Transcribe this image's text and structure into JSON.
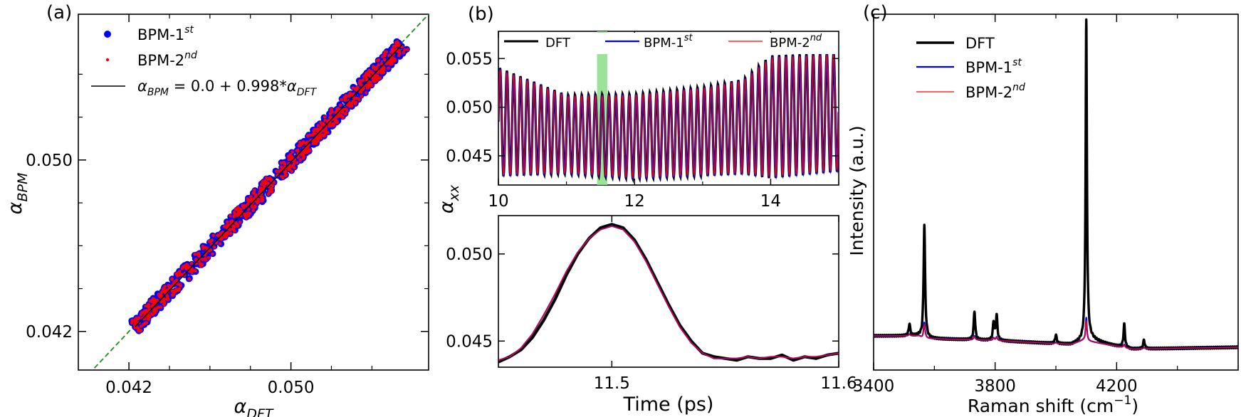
{
  "chart_data": [
    {
      "panel": "(a)",
      "type": "scatter",
      "xlabel": "α_DFT",
      "xlabel_base": "α",
      "xlabel_sub": "DFT",
      "ylabel": "α_BPM",
      "ylabel_base": "α",
      "ylabel_sub": "BPM",
      "xlim": [
        0.0395,
        0.0568
      ],
      "ylim": [
        0.0402,
        0.0568
      ],
      "xticks": [
        "0.042",
        "0.050"
      ],
      "xtick_values": [
        0.042,
        0.05
      ],
      "yticks": [
        "0.042",
        "0.050"
      ],
      "ytick_values": [
        0.042,
        0.05
      ],
      "x_minor_ticks": [
        0.044,
        0.046,
        0.048,
        0.052,
        0.054
      ],
      "y_minor_ticks": [
        0.044,
        0.046,
        0.048,
        0.052,
        0.054
      ],
      "data_range": [
        0.0423,
        0.0555
      ],
      "fit": {
        "intercept": 0.0,
        "slope": 0.998
      },
      "series": [
        {
          "name": "BPM-1st",
          "label_base": "BPM-1",
          "label_sup": "st",
          "color": "#0000ff",
          "marker": "dot"
        },
        {
          "name": "BPM-2nd",
          "label_base": "BPM-2",
          "label_sup": "nd",
          "color": "#ff0000",
          "marker": "small-dot"
        },
        {
          "name": "α_BPM = 0.0 + 0.998*α_DFT",
          "color": "#000000",
          "marker": "line"
        }
      ],
      "fit_label": {
        "a": "α",
        "bpm": "BPM",
        "eq": " = 0.0 + 0.998*",
        "dft": "DFT"
      },
      "diagonal": {
        "color": "#228b22",
        "style": "dashed"
      },
      "legend_position": "top-left"
    },
    {
      "panel": "(b)",
      "type": "line",
      "subplot": "top",
      "ylabel": "α_xx",
      "ylabel_base": "α",
      "ylabel_sub": "xx",
      "xlim": [
        10,
        15
      ],
      "ylim": [
        0.042,
        0.0578
      ],
      "xticks": [
        "10",
        "12",
        "14"
      ],
      "xtick_values": [
        10,
        12,
        14
      ],
      "yticks": [
        "0.045",
        "0.050",
        "0.055"
      ],
      "ytick_values": [
        0.045,
        0.05,
        0.055
      ],
      "oscillation_period_ps": 0.1,
      "mean_and_amplitude": [
        {
          "t": 10.0,
          "mean": 0.0485,
          "amp": 0.0055
        },
        {
          "t": 11.0,
          "mean": 0.0472,
          "amp": 0.004
        },
        {
          "t": 12.0,
          "mean": 0.047,
          "amp": 0.0043
        },
        {
          "t": 13.0,
          "mean": 0.0475,
          "amp": 0.0045
        },
        {
          "t": 13.6,
          "mean": 0.048,
          "amp": 0.0048
        },
        {
          "t": 14.0,
          "mean": 0.049,
          "amp": 0.0062
        },
        {
          "t": 15.0,
          "mean": 0.0495,
          "amp": 0.006
        }
      ],
      "highlight_band": {
        "from": 11.45,
        "to": 11.6,
        "color": "#90e090"
      },
      "series": [
        {
          "name": "DFT",
          "color": "#000000"
        },
        {
          "name": "BPM-1st",
          "label_base": "BPM-1",
          "label_sup": "st",
          "color": "#0000ff"
        },
        {
          "name": "BPM-2nd",
          "label_base": "BPM-2",
          "label_sup": "nd",
          "color": "#ff0000"
        }
      ],
      "legend_position": "top"
    },
    {
      "panel": "(b)",
      "type": "line",
      "subplot": "bottom",
      "xlabel": "Time (ps)",
      "xlim": [
        11.45,
        11.6
      ],
      "ylim": [
        0.0435,
        0.0522
      ],
      "xticks": [
        "11.5",
        "11.6"
      ],
      "xtick_values": [
        11.5,
        11.6
      ],
      "yticks": [
        "0.050",
        "0.045"
      ],
      "ytick_values": [
        0.05,
        0.045
      ],
      "x": [
        11.45,
        11.455,
        11.46,
        11.465,
        11.47,
        11.475,
        11.48,
        11.485,
        11.49,
        11.495,
        11.5,
        11.505,
        11.51,
        11.515,
        11.52,
        11.525,
        11.53,
        11.535,
        11.54,
        11.545,
        11.55,
        11.555,
        11.56,
        11.565,
        11.57,
        11.575,
        11.58,
        11.585,
        11.59,
        11.595,
        11.6
      ],
      "series": [
        {
          "name": "DFT",
          "color": "#000000",
          "values": [
            0.0438,
            0.0441,
            0.0445,
            0.0452,
            0.0462,
            0.0474,
            0.0488,
            0.05,
            0.0509,
            0.0515,
            0.0517,
            0.0515,
            0.0508,
            0.0497,
            0.0484,
            0.0471,
            0.0459,
            0.045,
            0.0443,
            0.0441,
            0.044,
            0.0439,
            0.0441,
            0.044,
            0.044,
            0.0442,
            0.0439,
            0.0441,
            0.044,
            0.0442,
            0.0443
          ]
        },
        {
          "name": "BPM-1st",
          "color": "#0000ff",
          "values": [
            0.0439,
            0.0441,
            0.0446,
            0.0454,
            0.0465,
            0.0477,
            0.049,
            0.0501,
            0.0509,
            0.0514,
            0.0516,
            0.0514,
            0.0507,
            0.0496,
            0.0483,
            0.047,
            0.0458,
            0.0449,
            0.0443,
            0.044,
            0.044,
            0.044,
            0.0441,
            0.044,
            0.0441,
            0.0441,
            0.044,
            0.0441,
            0.0441,
            0.0442,
            0.0443
          ]
        },
        {
          "name": "BPM-2nd",
          "color": "#ff0000",
          "values": [
            0.0439,
            0.0441,
            0.0446,
            0.0454,
            0.0465,
            0.0477,
            0.049,
            0.0501,
            0.0509,
            0.0514,
            0.0516,
            0.0514,
            0.0507,
            0.0496,
            0.0483,
            0.047,
            0.0458,
            0.0449,
            0.0443,
            0.044,
            0.044,
            0.044,
            0.0441,
            0.044,
            0.0441,
            0.0441,
            0.044,
            0.0441,
            0.0441,
            0.0442,
            0.0443
          ]
        }
      ]
    },
    {
      "panel": "(c)",
      "type": "line",
      "xlabel": "Raman shift (cm⁻¹)",
      "xlabel_text": "Raman shift (cm",
      "xlabel_sup": "−1",
      "xlabel_close": ")",
      "ylabel": "Intensity (a.u.)",
      "xlim": [
        3400,
        4600
      ],
      "ylim": [
        0,
        100
      ],
      "xticks": [
        "3400",
        "3800",
        "4200"
      ],
      "xtick_values": [
        3400,
        3800,
        4200
      ],
      "x_minor_ticks": [
        3600,
        4000,
        4400
      ],
      "baseline": [
        {
          "x": 3400,
          "y": 9.6
        },
        {
          "x": 3550,
          "y": 9.6
        },
        {
          "x": 3560,
          "y": 8.9
        },
        {
          "x": 3800,
          "y": 8.3
        },
        {
          "x": 4050,
          "y": 7.2
        },
        {
          "x": 4090,
          "y": 8.4
        },
        {
          "x": 4250,
          "y": 5.9
        },
        {
          "x": 4600,
          "y": 6.4
        }
      ],
      "peaks": [
        {
          "pos": 3518,
          "height": 3.4,
          "width": 3
        },
        {
          "pos": 3567,
          "height": 32,
          "width": 3
        },
        {
          "pos": 3732,
          "height": 8,
          "width": 3
        },
        {
          "pos": 3795,
          "height": 5,
          "width": 3
        },
        {
          "pos": 3805,
          "height": 7,
          "width": 3
        },
        {
          "pos": 4000,
          "height": 2.5,
          "width": 3
        },
        {
          "pos": 4100,
          "height": 90,
          "width": 2.5
        },
        {
          "pos": 4225,
          "height": 6.5,
          "width": 3
        },
        {
          "pos": 4290,
          "height": 2.5,
          "width": 3
        }
      ],
      "series": [
        {
          "name": "DFT",
          "color": "#000000",
          "peak_scale": 1.0
        },
        {
          "name": "BPM-1st",
          "label_base": "BPM-1",
          "label_sup": "st",
          "color": "#0000ff",
          "peak_scale": 0.04
        },
        {
          "name": "BPM-2nd",
          "label_base": "BPM-2",
          "label_sup": "nd",
          "color": "#ff0000",
          "peak_scale": 0.035
        }
      ],
      "legend_position": "top-left"
    }
  ]
}
